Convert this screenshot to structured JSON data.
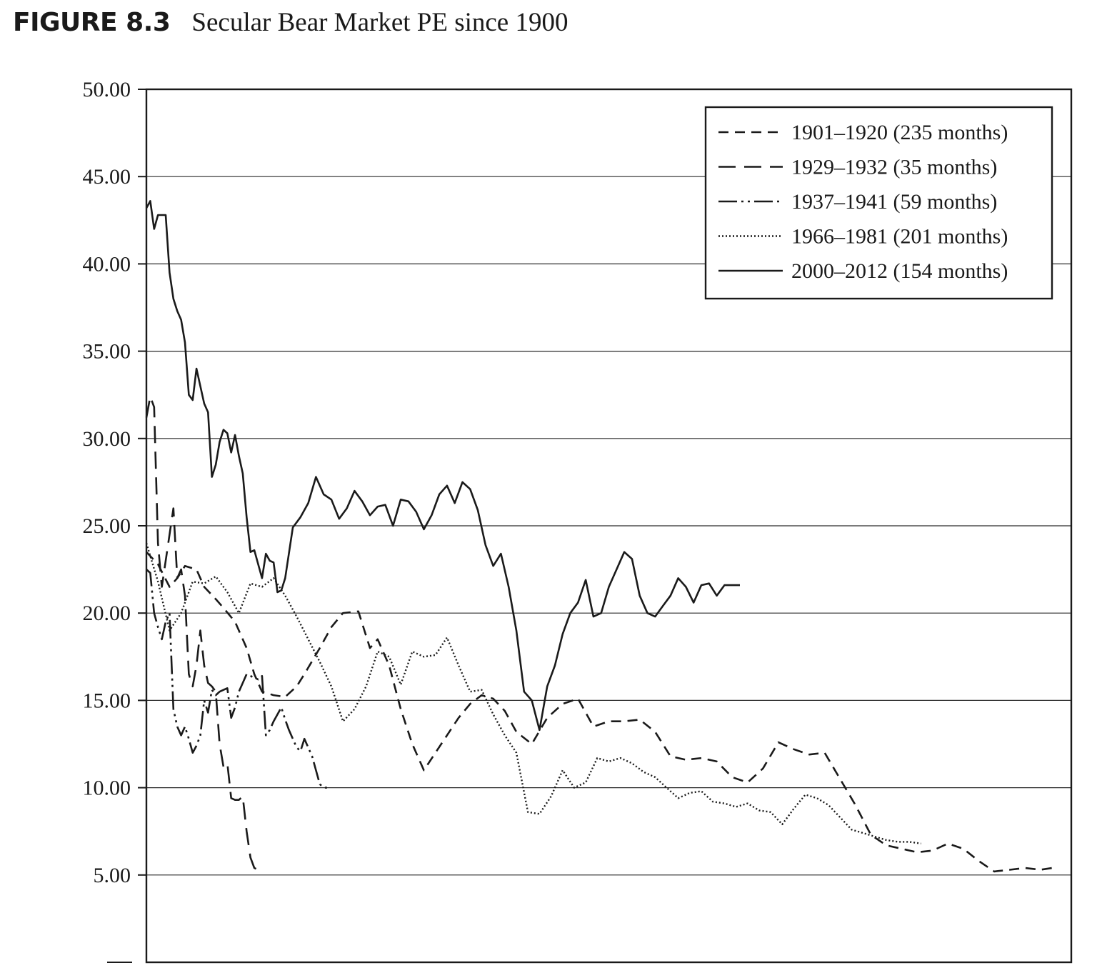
{
  "figure": {
    "label": "FIGURE 8.3",
    "title": "Secular Bear Market PE since 1900"
  },
  "chart_data": {
    "type": "line",
    "title": "Secular Bear Market PE since 1900",
    "xlabel": "",
    "ylabel": "",
    "ylim": [
      0,
      50
    ],
    "xlim": [
      0,
      240
    ],
    "y_tick_labels": [
      "5.00",
      "10.00",
      "15.00",
      "20.00",
      "25.00",
      "30.00",
      "35.00",
      "40.00",
      "45.00",
      "50.00"
    ],
    "y_tick_values": [
      5,
      10,
      15,
      20,
      25,
      30,
      35,
      40,
      45,
      50
    ],
    "grid": "horizontal",
    "legend_position": "top-right",
    "series": [
      {
        "name": "1901–1920 (235 months)",
        "style": "dashed",
        "x": [
          0,
          3,
          6,
          8,
          10,
          13,
          15,
          18,
          20,
          23,
          26,
          28,
          30,
          33,
          36,
          39,
          41,
          45,
          48,
          51,
          55,
          58,
          60,
          63,
          66,
          69,
          72,
          75,
          78,
          81,
          84,
          87,
          90,
          93,
          96,
          100,
          104,
          108,
          112,
          116,
          120,
          124,
          128,
          132,
          136,
          140,
          144,
          148,
          152,
          156,
          160,
          164,
          168,
          172,
          176,
          180,
          184,
          188,
          192,
          196,
          200,
          204,
          208,
          212,
          216,
          220,
          224,
          228,
          232,
          235
        ],
        "values": [
          23.5,
          22.8,
          21.5,
          22.0,
          22.7,
          22.5,
          21.5,
          20.8,
          20.3,
          19.5,
          18.0,
          16.5,
          15.5,
          15.3,
          15.2,
          15.8,
          16.5,
          18.0,
          19.2,
          20.0,
          20.1,
          18.0,
          18.5,
          17.0,
          14.5,
          12.5,
          11.0,
          12.0,
          13.0,
          14.0,
          14.8,
          15.3,
          15.1,
          14.4,
          13.2,
          12.5,
          14.0,
          14.8,
          15.1,
          13.5,
          13.8,
          13.8,
          13.9,
          13.2,
          11.8,
          11.6,
          11.7,
          11.5,
          10.6,
          10.3,
          11.1,
          12.6,
          12.2,
          11.9,
          12.0,
          10.5,
          9.0,
          7.3,
          6.7,
          6.5,
          6.3,
          6.4,
          6.8,
          6.5,
          5.8,
          5.2,
          5.3,
          5.4,
          5.3,
          5.4
        ]
      },
      {
        "name": "1929–1932 (35 months)",
        "style": "long-dashed",
        "x": [
          0,
          1,
          2,
          3,
          4,
          5,
          6,
          7,
          8,
          9,
          10,
          11,
          12,
          13,
          14,
          15,
          16,
          17,
          18,
          19,
          20,
          21,
          22,
          23,
          24,
          25,
          26,
          27,
          28,
          29,
          30,
          31,
          32,
          33,
          34,
          35
        ],
        "values": [
          31.2,
          32.4,
          31.8,
          24.0,
          21.5,
          23.0,
          24.5,
          26.0,
          22.0,
          22.5,
          21.0,
          16.5,
          15.8,
          17.0,
          19.0,
          17.0,
          16.0,
          15.8,
          15.5,
          12.5,
          11.2,
          11.4,
          9.4,
          9.3,
          9.3,
          9.5,
          7.5,
          6.0,
          5.4,
          5.3,
          5.2,
          5.2,
          5.2,
          5.2,
          5.2,
          5.2
        ],
        "draw_until": 29
      },
      {
        "name": "1937–1941 (59 months)",
        "style": "dash-dot-dot",
        "x": [
          0,
          1,
          2,
          3,
          4,
          5,
          6,
          7,
          8,
          9,
          10,
          11,
          12,
          13,
          14,
          15,
          16,
          17,
          18,
          19,
          20,
          21,
          22,
          23,
          24,
          25,
          26,
          27,
          28,
          29,
          30,
          31,
          32,
          33,
          34,
          35,
          36,
          37,
          38,
          39,
          40,
          41,
          42,
          43,
          44,
          45,
          46,
          47,
          48,
          49,
          50,
          51,
          52,
          53,
          54,
          55,
          56,
          57,
          58,
          59
        ],
        "values": [
          22.5,
          22.3,
          20.0,
          19.2,
          18.5,
          19.5,
          20.0,
          14.5,
          13.5,
          13.0,
          13.5,
          12.8,
          12.0,
          12.4,
          13.0,
          15.0,
          14.3,
          15.6,
          15.3,
          15.5,
          15.6,
          15.7,
          14.0,
          14.6,
          15.5,
          16.0,
          16.5,
          16.4,
          16.3,
          16.2,
          16.4,
          13.0,
          13.3,
          13.8,
          14.2,
          14.6,
          13.9,
          13.3,
          12.8,
          12.3,
          12.1,
          12.8,
          12.3,
          11.8,
          11.0,
          10.2,
          10.0,
          10.0,
          10.0,
          10.0,
          10.0,
          10.0,
          10.0,
          10.0,
          10.0,
          10.0,
          10.0,
          10.0,
          10.0,
          10.0
        ],
        "draw_until": 47
      },
      {
        "name": "1966–1981 (201 months)",
        "style": "dotted",
        "x": [
          0,
          3,
          6,
          9,
          12,
          15,
          18,
          21,
          24,
          27,
          30,
          33,
          36,
          39,
          42,
          45,
          48,
          51,
          54,
          57,
          60,
          63,
          66,
          69,
          72,
          75,
          78,
          81,
          84,
          87,
          90,
          93,
          96,
          99,
          102,
          105,
          108,
          111,
          114,
          117,
          120,
          123,
          126,
          129,
          132,
          135,
          138,
          141,
          144,
          147,
          150,
          153,
          156,
          159,
          162,
          165,
          168,
          171,
          174,
          177,
          180,
          183,
          186,
          189,
          192,
          195,
          198,
          201
        ],
        "values": [
          24.0,
          21.8,
          19.0,
          20.0,
          21.8,
          21.7,
          22.1,
          21.2,
          20.0,
          21.7,
          21.5,
          22.0,
          21.0,
          19.8,
          18.5,
          17.2,
          15.8,
          13.8,
          14.5,
          15.8,
          17.8,
          17.5,
          15.9,
          17.8,
          17.5,
          17.6,
          18.6,
          17.0,
          15.5,
          15.6,
          14.2,
          13.0,
          12.0,
          8.6,
          8.5,
          9.5,
          11.0,
          10.0,
          10.3,
          11.7,
          11.5,
          11.7,
          11.4,
          10.9,
          10.6,
          10.0,
          9.4,
          9.7,
          9.8,
          9.2,
          9.1,
          8.9,
          9.1,
          8.7,
          8.6,
          7.9,
          8.8,
          9.6,
          9.4,
          9.0,
          8.3,
          7.6,
          7.4,
          7.2,
          7.0,
          6.9,
          6.9,
          6.8
        ]
      },
      {
        "name": "2000–2012 (154 months)",
        "style": "solid",
        "x": [
          0,
          1,
          2,
          3,
          4,
          5,
          6,
          7,
          8,
          9,
          10,
          11,
          12,
          13,
          14,
          15,
          16,
          17,
          18,
          19,
          20,
          21,
          22,
          23,
          24,
          25,
          26,
          27,
          28,
          29,
          30,
          31,
          32,
          33,
          34,
          35,
          36,
          38,
          40,
          42,
          44,
          46,
          48,
          50,
          52,
          54,
          56,
          58,
          60,
          62,
          64,
          66,
          68,
          70,
          72,
          74,
          76,
          78,
          80,
          82,
          84,
          86,
          88,
          90,
          92,
          94,
          96,
          98,
          100,
          102,
          104,
          106,
          108,
          110,
          112,
          114,
          116,
          118,
          120,
          122,
          124,
          126,
          128,
          130,
          132,
          134,
          136,
          138,
          140,
          142,
          144,
          146,
          148,
          150,
          152,
          154
        ],
        "values": [
          43.2,
          43.6,
          42.0,
          42.8,
          42.8,
          42.8,
          39.5,
          38.0,
          37.3,
          36.8,
          35.5,
          32.5,
          32.2,
          34.0,
          33.0,
          32.0,
          31.5,
          27.8,
          28.5,
          29.8,
          30.5,
          30.3,
          29.2,
          30.2,
          29.0,
          28.0,
          25.5,
          23.5,
          23.6,
          22.8,
          22.0,
          23.4,
          23.0,
          22.9,
          21.2,
          21.3,
          22.0,
          24.9,
          25.5,
          26.3,
          27.8,
          26.8,
          26.5,
          25.4,
          26.0,
          27.0,
          26.4,
          25.6,
          26.1,
          26.2,
          25.0,
          26.5,
          26.4,
          25.8,
          24.8,
          25.6,
          26.8,
          27.3,
          26.3,
          27.5,
          27.1,
          25.9,
          23.9,
          22.7,
          23.4,
          21.5,
          19.0,
          15.5,
          15.0,
          13.3,
          15.8,
          17.0,
          18.8,
          20.0,
          20.6,
          21.9,
          19.8,
          20.0,
          21.5,
          22.5,
          23.5,
          23.1,
          21.0,
          20.0,
          19.8,
          20.4,
          21.0,
          22.0,
          21.5,
          20.6,
          21.6,
          21.7,
          21.0,
          21.6,
          21.6,
          21.6
        ],
        "draw_until": 154
      }
    ]
  }
}
